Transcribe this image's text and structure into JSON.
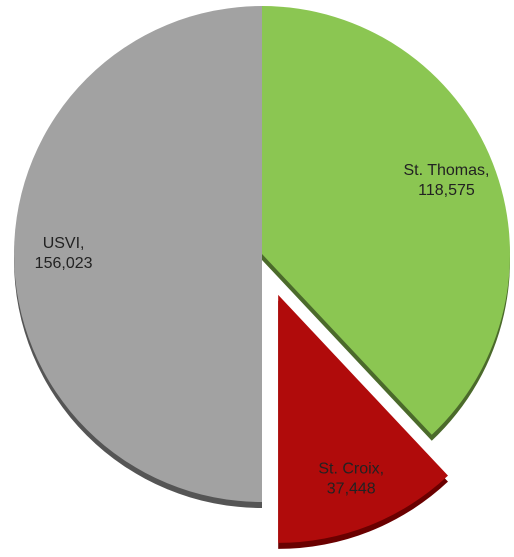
{
  "chart_data": {
    "type": "pie",
    "categories": [
      "St. Thomas,",
      "St. Croix,",
      "USVI,"
    ],
    "values": [
      118575,
      37448,
      156023
    ],
    "value_labels": [
      "118,575",
      "37,448",
      "156,023"
    ],
    "colors": [
      "#8bc652",
      "#b00b0b",
      "#a2a2a2"
    ],
    "shadow_colors": [
      "#4b6a2b",
      "#6a0000",
      "#555555"
    ],
    "explode": [
      0,
      1,
      0
    ]
  }
}
